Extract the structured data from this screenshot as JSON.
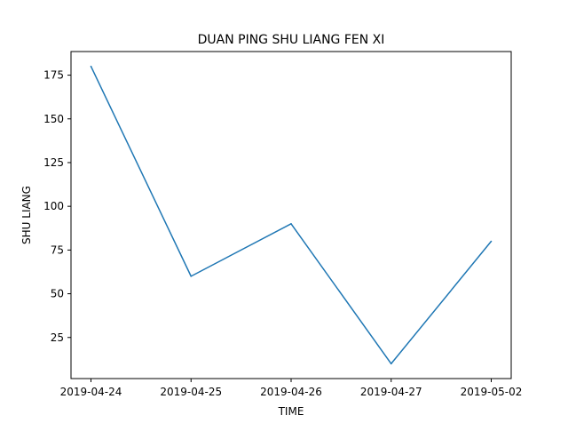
{
  "chart_data": {
    "type": "line",
    "title": "DUAN PING SHU LIANG FEN XI",
    "xlabel": "TIME",
    "ylabel": "SHU LIANG",
    "categories": [
      "2019-04-24",
      "2019-04-25",
      "2019-04-26",
      "2019-04-27",
      "2019-05-02"
    ],
    "series": [
      {
        "values": [
          180,
          60,
          90,
          10,
          80
        ],
        "color": "#1f77b4"
      }
    ],
    "yticks": [
      25,
      50,
      75,
      100,
      125,
      150,
      175
    ],
    "ylim": [
      1.5,
      188.5
    ],
    "grid": false,
    "legend": "none"
  }
}
